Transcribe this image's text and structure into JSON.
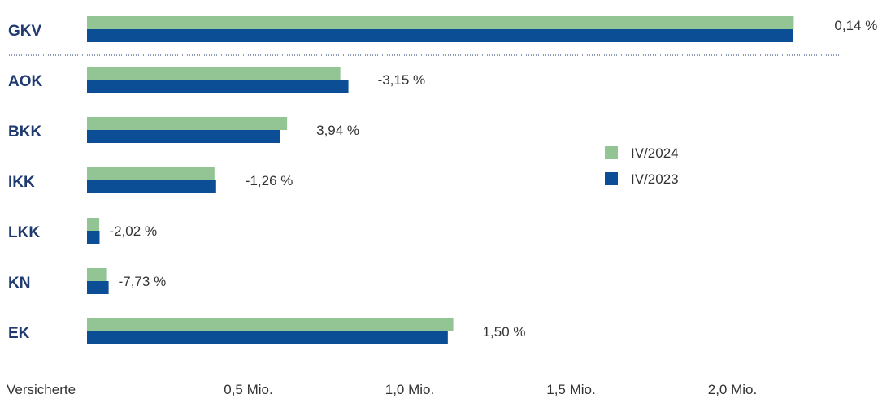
{
  "chart_data": {
    "type": "bar",
    "orientation": "horizontal",
    "categories": [
      "GKV",
      "AOK",
      "BKK",
      "IKK",
      "LKK",
      "KN",
      "EK"
    ],
    "series": [
      {
        "name": "IV/2024",
        "color": "#93c594",
        "values": [
          2.19,
          0.785,
          0.62,
          0.395,
          0.038,
          0.062,
          1.135
        ]
      },
      {
        "name": "IV/2023",
        "color": "#0b4e96",
        "values": [
          2.187,
          0.81,
          0.597,
          0.4,
          0.039,
          0.067,
          1.118
        ]
      }
    ],
    "change_labels": [
      "0,14 %",
      "-3,15 %",
      "3,94 %",
      "-1,26 %",
      "-2,02 %",
      "-7,73 %",
      "1,50 %"
    ],
    "xlabel": "Versicherte",
    "x_ticks": [
      {
        "value": 0.5,
        "label": "0,5 Mio."
      },
      {
        "value": 1.0,
        "label": "1,0 Mio."
      },
      {
        "value": 1.5,
        "label": "1,5 Mio."
      },
      {
        "value": 2.0,
        "label": "2,0 Mio."
      }
    ],
    "xlim": [
      0,
      2.2
    ],
    "unit": "Mio.",
    "legend_position": "right",
    "separator_after": "GKV",
    "grid": false
  }
}
